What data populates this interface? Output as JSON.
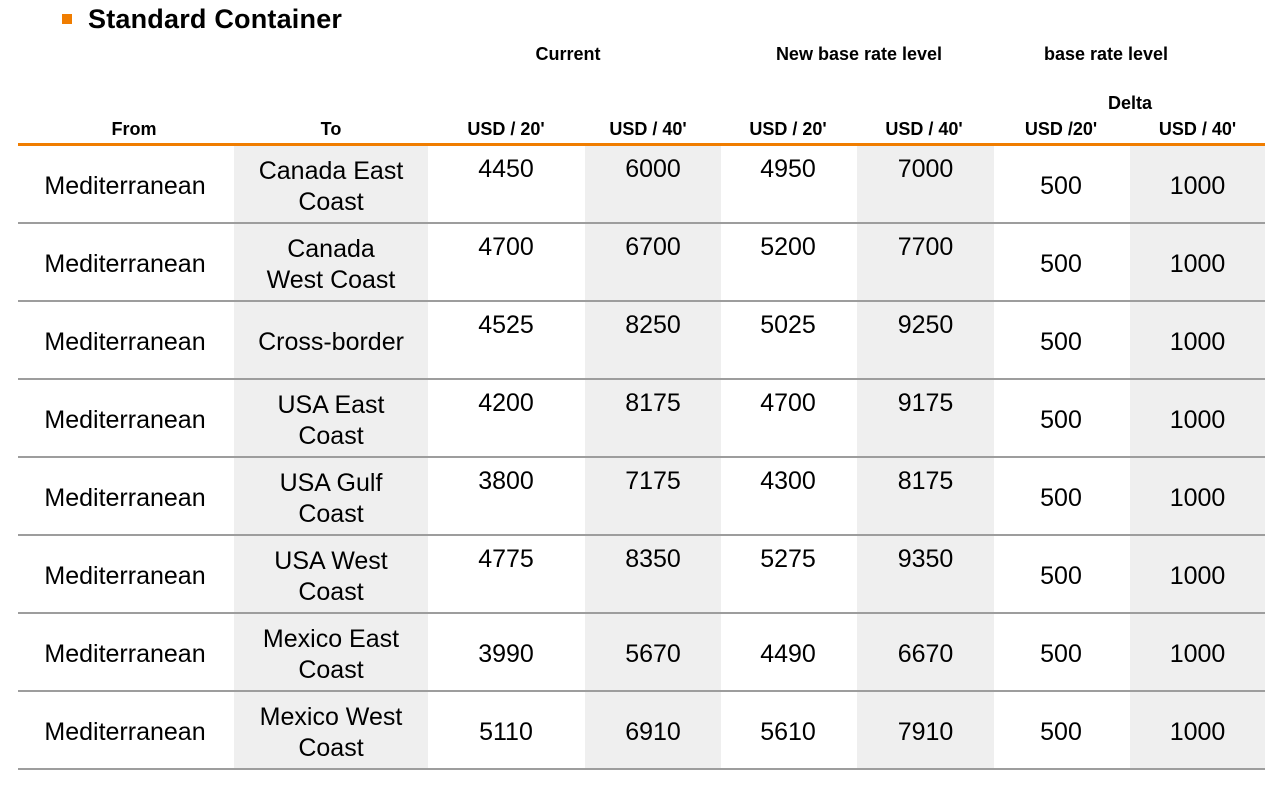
{
  "title": "Standard Container",
  "column_groups": {
    "current": "Current",
    "new_base_rate": "New base rate level",
    "base_rate": "base rate level",
    "delta": "Delta"
  },
  "headers": {
    "from": "From",
    "to": "To",
    "current_20": "USD / 20'",
    "current_40": "USD / 40'",
    "new_20": "USD / 20'",
    "new_40": "USD / 40'",
    "delta_20": "USD /20'",
    "delta_40": "USD / 40'"
  },
  "rows": [
    {
      "from": "Mediterranean",
      "to": [
        "Canada East",
        "Coast"
      ],
      "current_20": "4450",
      "current_40": "6000",
      "new_20": "4950",
      "new_40": "7000",
      "delta_20": "500",
      "delta_40": "1000"
    },
    {
      "from": "Mediterranean",
      "to": [
        "Canada",
        "West Coast"
      ],
      "current_20": "4700",
      "current_40": "6700",
      "new_20": "5200",
      "new_40": "7700",
      "delta_20": "500",
      "delta_40": "1000"
    },
    {
      "from": "Mediterranean",
      "to": [
        "Cross-border"
      ],
      "current_20": "4525",
      "current_40": "8250",
      "new_20": "5025",
      "new_40": "9250",
      "delta_20": "500",
      "delta_40": "1000"
    },
    {
      "from": "Mediterranean",
      "to": [
        "USA East",
        "Coast"
      ],
      "current_20": "4200",
      "current_40": "8175",
      "new_20": "4700",
      "new_40": "9175",
      "delta_20": "500",
      "delta_40": "1000"
    },
    {
      "from": "Mediterranean",
      "to": [
        "USA Gulf",
        "Coast"
      ],
      "current_20": "3800",
      "current_40": "7175",
      "new_20": "4300",
      "new_40": "8175",
      "delta_20": "500",
      "delta_40": "1000"
    },
    {
      "from": "Mediterranean",
      "to": [
        "USA West",
        "Coast"
      ],
      "current_20": "4775",
      "current_40": "8350",
      "new_20": "5275",
      "new_40": "9350",
      "delta_20": "500",
      "delta_40": "1000"
    },
    {
      "from": "Mediterranean",
      "to": [
        "Mexico East",
        "Coast"
      ],
      "current_20": "3990",
      "current_40": "5670",
      "new_20": "4490",
      "new_40": "6670",
      "delta_20": "500",
      "delta_40": "1000"
    },
    {
      "from": "Mediterranean",
      "to": [
        "Mexico West",
        "Coast"
      ],
      "current_20": "5110",
      "current_40": "6910",
      "new_20": "5610",
      "new_40": "7910",
      "delta_20": "500",
      "delta_40": "1000"
    }
  ],
  "colors": {
    "accent": "#f07d00",
    "shade": "#efefef",
    "row_rule": "#9d9d9d"
  }
}
